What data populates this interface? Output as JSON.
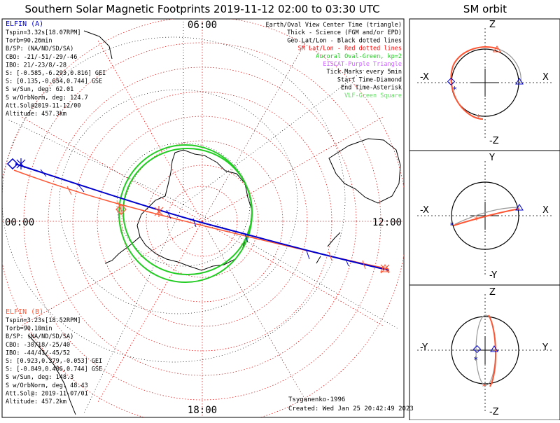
{
  "title": "Southern Solar Magnetic Footprints 2019-11-12 02:00 to 03:30 UTC",
  "orbit_title": "SM orbit",
  "clock_labels": {
    "top": "06:00",
    "left": "00:00",
    "right": "12:00",
    "bottom": "18:00"
  },
  "legend": [
    {
      "text": "Earth/Oval View Center Time (triangle)",
      "color": "#000000"
    },
    {
      "text": "Thick - Science (FGM and/or EPD)",
      "color": "#000000"
    },
    {
      "text": "Geo Lat/Lon - Black dotted lines",
      "color": "#000000"
    },
    {
      "text": "SM Lat/Lon - Red dotted lines",
      "color": "#ff0000"
    },
    {
      "text": "Auroral Oval-Green, kp=2",
      "color": "#22cc22"
    },
    {
      "text": "EISCAT-Purple Triangle",
      "color": "#cc66ff"
    },
    {
      "text": "Tick Marks every 5min",
      "color": "#000000"
    },
    {
      "text": "Start Time-Diamond",
      "color": "#000000"
    },
    {
      "text": "End Time-Asterisk",
      "color": "#000000"
    },
    {
      "text": "VLF-Green Square",
      "color": "#66dd66"
    }
  ],
  "elfin_a": {
    "name": "ELFIN (A)",
    "color": "#0000cc",
    "lines": [
      "Tspin=3.32s[18.07RPM]",
      "Torb=90.26min",
      "B/SP: (NA/ND/SD/SA)",
      "CBO: -21/-51/-29/-46",
      "IBO: 21/-23/8/-28",
      "S: [-0.585,-6.293,0.816] GEI",
      "S: [0.135,-0.654,0.744] GSE",
      "S w/Sun, deg: 62.01",
      "S w/OrbNorm, deg: 124.7",
      "Att.Sol@2019-11-12/00",
      "Altitude: 457.3km"
    ]
  },
  "elfin_b": {
    "name": "ELFIN (B)",
    "color": "#ff5533",
    "lines": [
      "Tspin=3.23s[18.52RPM]",
      "Torb=90.10min",
      "B/SP: (NA/ND/SD/SA)",
      "CBO: -30/18/-25/40",
      "IBO: -44/41/-45/52",
      "S: [0.923,0.379,-0.053] GEI",
      "S: [-0.849,0.486,0.744] GSE",
      "S w/Sun, deg: 148.3",
      "S w/OrbNorm, deg: 48.43",
      "Att.Sol@: 2019-11-07/01",
      "Altitude: 457.2km"
    ]
  },
  "credits": {
    "author": "Tsyganenko-1996",
    "created": "Created: Wed Jan 25 20:42:49 2023"
  },
  "panels": [
    {
      "labels": {
        "top": "Z",
        "bottom": "-Z",
        "left": "-X",
        "right": "X"
      }
    },
    {
      "labels": {
        "top": "Y",
        "bottom": "-Y",
        "left": "-X",
        "right": "X"
      }
    },
    {
      "labels": {
        "top": "Z",
        "bottom": "-Z",
        "left": "-Y",
        "right": "Y"
      }
    }
  ],
  "colors": {
    "sm_grid": "#dd2222",
    "oval": "#22cc22",
    "track_a": "#0000cc",
    "track_b": "#ff5533",
    "geo_grid": "#000000"
  }
}
